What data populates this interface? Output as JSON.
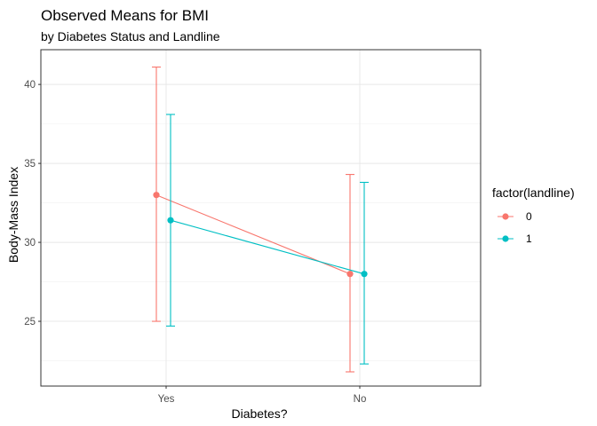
{
  "chart_data": {
    "type": "line",
    "title": "Observed Means for BMI",
    "subtitle": "by Diabetes Status and Landline",
    "xlabel": "Diabetes?",
    "ylabel": "Body-Mass Index",
    "categories": [
      "Yes",
      "No"
    ],
    "ylim": [
      20.9,
      42.2
    ],
    "yticks": [
      25,
      30,
      35,
      40
    ],
    "grid": true,
    "legend": {
      "title": "factor(landline)",
      "position": "right"
    },
    "series": [
      {
        "name": "0",
        "color": "#F8766D",
        "means": [
          33.0,
          28.0
        ],
        "lower": [
          25.0,
          21.8
        ],
        "upper": [
          41.1,
          34.3
        ]
      },
      {
        "name": "1",
        "color": "#00BFC4",
        "means": [
          31.4,
          28.0
        ],
        "lower": [
          24.7,
          22.3
        ],
        "upper": [
          38.1,
          33.8
        ]
      }
    ]
  }
}
